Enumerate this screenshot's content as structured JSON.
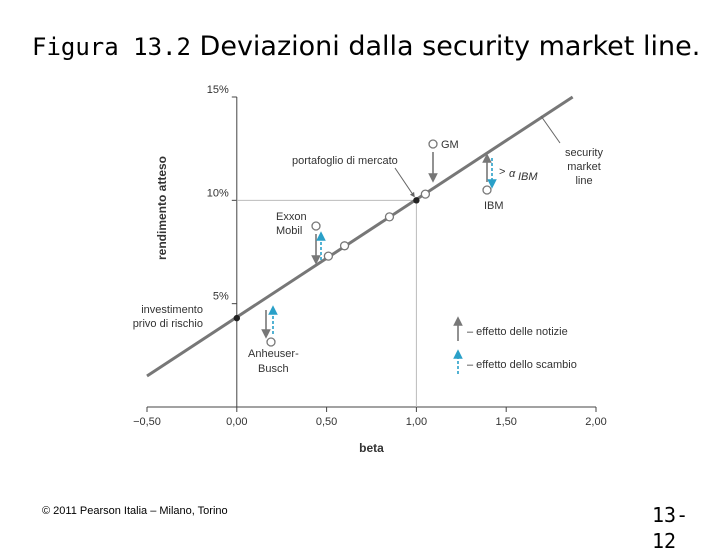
{
  "title": {
    "figure_number": "Figura 13.2",
    "text": "Deviazioni dalla security market line."
  },
  "footer": {
    "copyright": "© 2011 Pearson Italia – Milano, Torino",
    "page_number": "13-12"
  },
  "chart_data": {
    "type": "scatter",
    "xlabel": "beta",
    "ylabel": "rendimento atteso",
    "xlim": [
      -0.5,
      2.0
    ],
    "ylim": [
      0,
      15
    ],
    "x_ticks": [
      "−0,50",
      "0,00",
      "0,50",
      "1,00",
      "1,50",
      "2,00"
    ],
    "y_ticks": [
      "5%",
      "10%",
      "15%"
    ],
    "security_market_line": {
      "label": "security market line",
      "x": [
        -0.5,
        1.87
      ],
      "y": [
        1.5,
        15.0
      ]
    },
    "special_points": [
      {
        "label": "investimento privo di rischio",
        "x": 0.0,
        "y": 4.3
      },
      {
        "label": "portafoglio di mercato",
        "x": 1.0,
        "y": 10.0
      }
    ],
    "stocks": [
      {
        "label": "GM",
        "x": 1.1,
        "y": 12.8,
        "news_arrow": "down",
        "trade_arrow": ""
      },
      {
        "label": "IBM",
        "x": 1.4,
        "y": 10.4,
        "news_arrow": "up",
        "trade_arrow": "down"
      },
      {
        "label": "Exxon Mobil",
        "x": 0.45,
        "y": 8.4,
        "news_arrow": "down",
        "trade_arrow": "up"
      },
      {
        "label": "Anheuser-Busch",
        "x": 0.2,
        "y": 3.3,
        "news_arrow": "down",
        "trade_arrow": "up"
      }
    ],
    "line_points": [
      {
        "x": 0.51,
        "y": 7.3
      },
      {
        "x": 0.6,
        "y": 7.8
      },
      {
        "x": 0.85,
        "y": 9.2
      },
      {
        "x": 1.05,
        "y": 10.3
      }
    ],
    "alpha_label": "α",
    "alpha_subscript": "IBM",
    "legend": [
      {
        "label": "effetto delle notizie",
        "color": "#777777"
      },
      {
        "label": "effetto dello scambio",
        "color": "#2aa0c8"
      }
    ],
    "legend_position": "bottom-right",
    "colors": {
      "line": "#777777",
      "news": "#777777",
      "trade": "#2aa0c8",
      "guide": "#bbbbbb"
    }
  }
}
